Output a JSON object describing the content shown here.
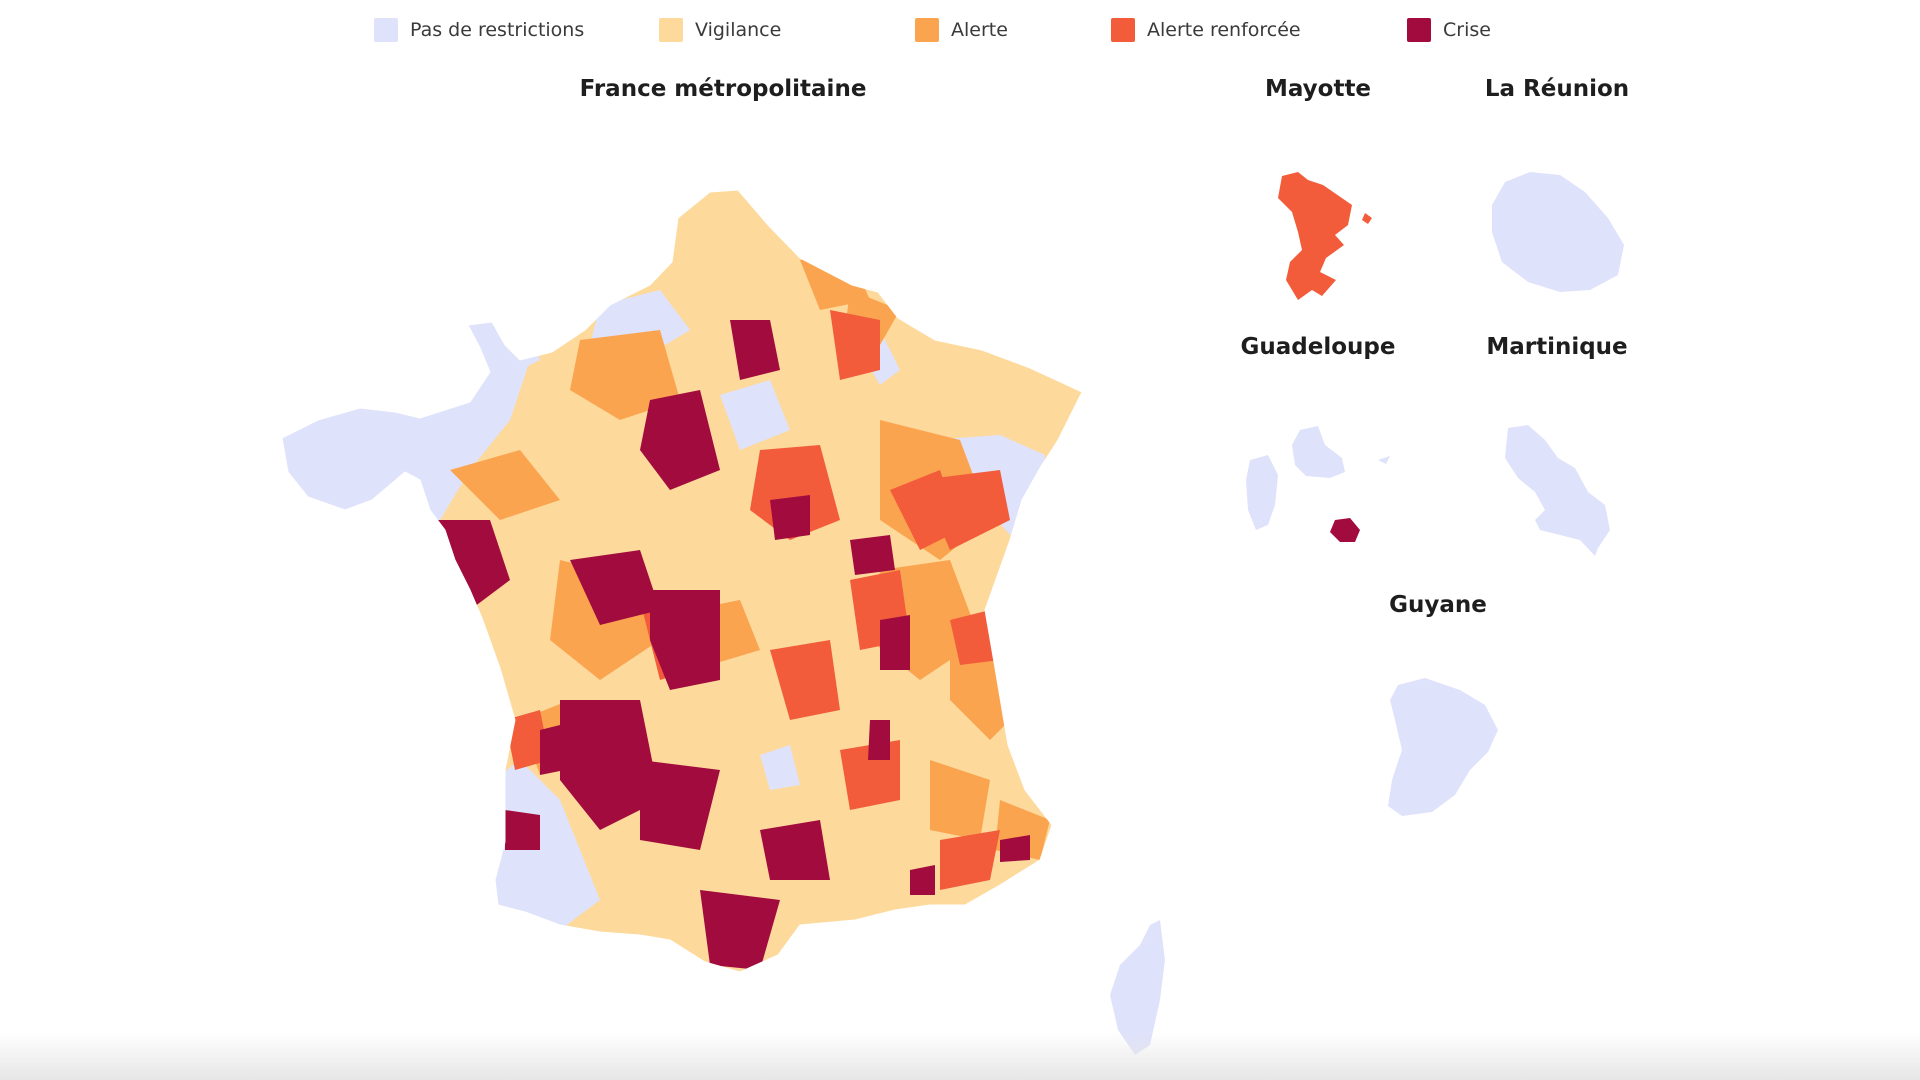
{
  "legend": {
    "items": [
      {
        "label": "Pas de restrictions",
        "color": "#dfe2fb"
      },
      {
        "label": "Vigilance",
        "color": "#fdd99b"
      },
      {
        "label": "Alerte",
        "color": "#fba450"
      },
      {
        "label": "Alerte renforcée",
        "color": "#f25c3b"
      },
      {
        "label": "Crise",
        "color": "#a20b3e"
      }
    ]
  },
  "territories": {
    "metropole": {
      "title": "France métropolitaine"
    },
    "mayotte": {
      "title": "Mayotte",
      "level": "Alerte renforcée"
    },
    "reunion": {
      "title": "La Réunion",
      "level": "Pas de restrictions"
    },
    "guadeloupe": {
      "title": "Guadeloupe",
      "level": "Pas de restrictions"
    },
    "martinique": {
      "title": "Martinique",
      "level": "Pas de restrictions"
    },
    "guyane": {
      "title": "Guyane",
      "level": "Pas de restrictions"
    }
  }
}
